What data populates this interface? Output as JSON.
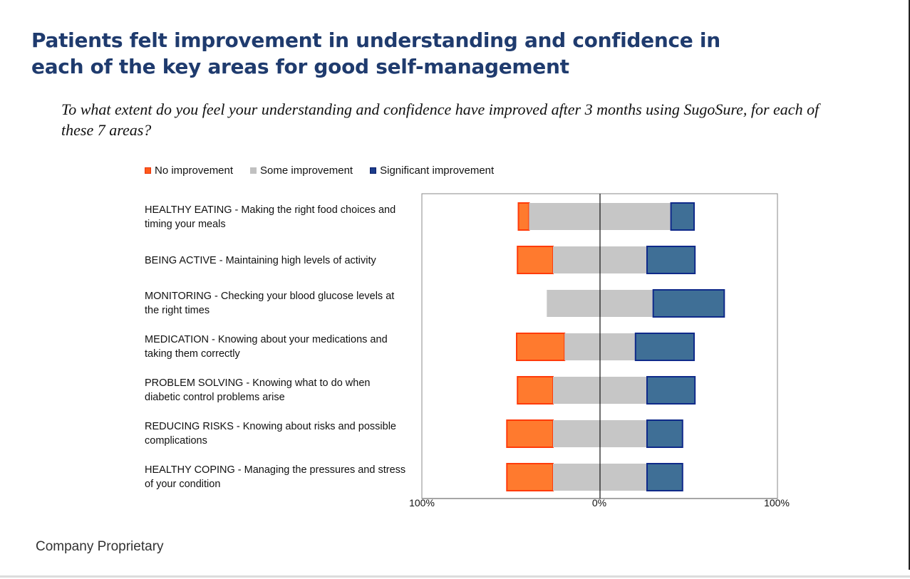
{
  "slide": {
    "title_line1": "Patients felt improvement in understanding and confidence in",
    "title_line2": "each of the key areas for good self-management",
    "subtitle": "To what extent do you feel your understanding and confidence have improved after 3 months using SugoSure, for each of these 7 areas?",
    "footer": "Company Proprietary"
  },
  "colors": {
    "title": "#1f3b6e",
    "no_improvement": "#ff7a2e",
    "no_improvement_border": "#ff3b0a",
    "some_improvement": "#c6c6c6",
    "significant_improvement": "#3f6f96",
    "significant_improvement_border": "#0f2a8a"
  },
  "chart_data": {
    "type": "bar",
    "orientation": "horizontal",
    "stacking": "diverging",
    "title": "",
    "xlabel": "",
    "ylabel": "",
    "xlim": [
      -100,
      100
    ],
    "x_tick_labels": [
      "100%",
      "0%",
      "100%"
    ],
    "legend_position": "top",
    "categories": [
      "HEALTHY EATING - Making the right food choices and timing your meals",
      "BEING ACTIVE - Maintaining high levels of activity",
      "MONITORING - Checking your blood glucose levels at the right times",
      "MEDICATION - Knowing about your medications and taking them correctly",
      "PROBLEM SOLVING - Knowing what to do when diabetic control problems arise",
      "REDUCING RISKS - Knowing about risks and possible complications",
      "HEALTHY COPING - Managing the pressures and stress of your condition"
    ],
    "series": [
      {
        "name": "No improvement",
        "values": [
          6,
          20,
          0,
          27,
          20,
          26,
          26
        ]
      },
      {
        "name": "Some improvement",
        "values": [
          80,
          53,
          60,
          40,
          53,
          53,
          53
        ]
      },
      {
        "name": "Significant improvement",
        "values": [
          13,
          27,
          40,
          33,
          27,
          20,
          20
        ]
      }
    ]
  }
}
